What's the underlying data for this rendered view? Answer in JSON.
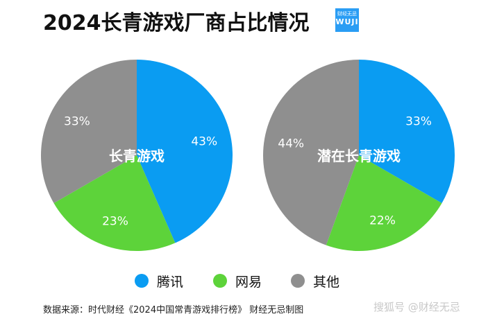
{
  "title": "2024长青游戏厂商占比情况",
  "logo": {
    "small": "财经无忌",
    "big": "WUJI"
  },
  "colors": {
    "tencent": "#0a9cf2",
    "netease": "#5dd33a",
    "other": "#8f8f8f"
  },
  "legend": [
    {
      "label": "腾讯",
      "color": "#0a9cf2"
    },
    {
      "label": "网易",
      "color": "#5dd33a"
    },
    {
      "label": "其他",
      "color": "#8f8f8f"
    }
  ],
  "source": "数据来源：时代财经《2024中国常青游戏排行榜》 财经无忌制图",
  "watermark": "搜狐号 @财经无忌",
  "chart_data": [
    {
      "type": "pie",
      "title": "长青游戏",
      "labels": [
        "腾讯",
        "网易",
        "其他"
      ],
      "values": [
        43,
        23,
        33
      ],
      "value_labels": [
        "43%",
        "23%",
        "33%"
      ],
      "colors": [
        "#0a9cf2",
        "#5dd33a",
        "#8f8f8f"
      ]
    },
    {
      "type": "pie",
      "title": "潜在长青游戏",
      "labels": [
        "腾讯",
        "网易",
        "其他"
      ],
      "values": [
        33,
        22,
        44
      ],
      "value_labels": [
        "33%",
        "22%",
        "44%"
      ],
      "colors": [
        "#0a9cf2",
        "#5dd33a",
        "#8f8f8f"
      ]
    }
  ]
}
